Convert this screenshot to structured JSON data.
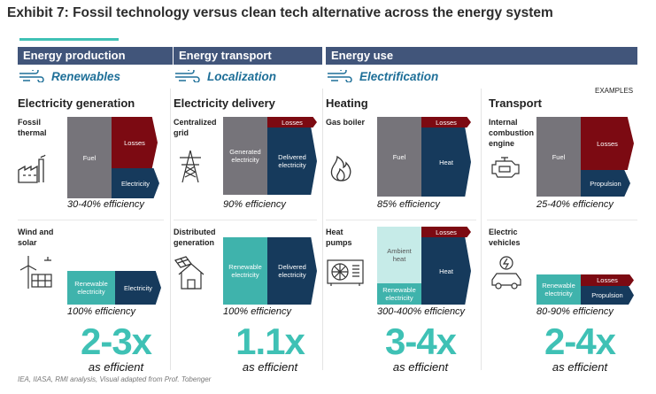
{
  "title": "Exhibit 7: Fossil technology versus clean tech alternative across the energy system",
  "sections": [
    {
      "head": "Energy production",
      "sub": "Renewables"
    },
    {
      "head": "Energy transport",
      "sub": "Localization"
    },
    {
      "head": "Energy use",
      "sub": "Electrification"
    }
  ],
  "examples_label": "EXAMPLES",
  "columns": [
    {
      "heading": "Electricity generation",
      "top_label": "Fossil\nthermal",
      "top_segments": {
        "a": "Fuel",
        "b": "Losses",
        "c": "Electricity"
      },
      "top_eff": "30-40% efficiency",
      "bottom_label": "Wind and\nsolar",
      "bottom_segments": {
        "a": "Renewable\nelectricity",
        "b": "Electricity"
      },
      "bottom_eff": "100% efficiency",
      "factor": "2-3x",
      "factor_label": "as efficient"
    },
    {
      "heading": "Electricity delivery",
      "top_label": "Centralized\ngrid",
      "top_segments": {
        "a": "Generated\nelectricity",
        "b": "Losses",
        "c": "Delivered\nelectricity"
      },
      "top_eff": "90% efficiency",
      "bottom_label": "Distributed\ngeneration",
      "bottom_segments": {
        "a": "Renewable\nelectricity",
        "b": "Delivered\nelectricity"
      },
      "bottom_eff": "100% efficiency",
      "factor": "1.1x",
      "factor_label": "as efficient"
    },
    {
      "heading": "Heating",
      "top_label": "Gas boiler",
      "top_segments": {
        "a": "Fuel",
        "b": "Losses",
        "c": "Heat"
      },
      "top_eff": "85% efficiency",
      "bottom_label": "Heat\npumps",
      "bottom_segments": {
        "a": "Ambient\nheat",
        "b": "Losses",
        "c": "Heat",
        "d": "Renewable\nelectricity"
      },
      "bottom_eff": "300-400% efficiency",
      "factor": "3-4x",
      "factor_label": "as efficient"
    },
    {
      "heading": "Transport",
      "top_label": "Internal\ncombustion\nengine",
      "top_segments": {
        "a": "Fuel",
        "b": "Losses",
        "c": "Propulsion"
      },
      "top_eff": "25-40% efficiency",
      "bottom_label": "Electric\nvehicles",
      "bottom_segments": {
        "a": "Renewable\nelectricity",
        "b": "Losses",
        "c": "Propulsion"
      },
      "bottom_eff": "80-90% efficiency",
      "factor": "2-4x",
      "factor_label": "as efficient"
    }
  ],
  "source": "IEA, IIASA, RMI analysis, Visual adapted from Prof. Tobenger",
  "colors": {
    "gray": "#76747a",
    "red": "#7c0a12",
    "navy": "#163a5c",
    "teal": "#3fb3ac",
    "accent": "#3fc1b5",
    "header": "#41557a"
  }
}
